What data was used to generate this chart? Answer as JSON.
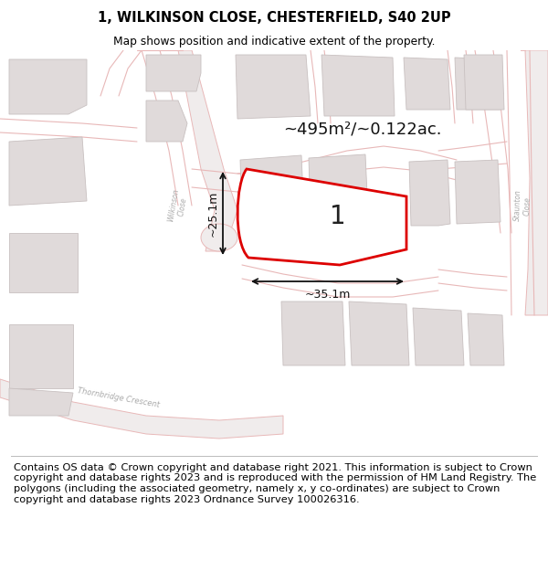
{
  "title_line1": "1, WILKINSON CLOSE, CHESTERFIELD, S40 2UP",
  "title_line2": "Map shows position and indicative extent of the property.",
  "footer_text": "Contains OS data © Crown copyright and database right 2021. This information is subject to Crown copyright and database rights 2023 and is reproduced with the permission of HM Land Registry. The polygons (including the associated geometry, namely x, y co-ordinates) are subject to Crown copyright and database rights 2023 Ordnance Survey 100026316.",
  "area_label": "~495m²/~0.122ac.",
  "plot_label": "1",
  "width_label": "~35.1m",
  "height_label": "~25.1m",
  "map_bg": "#f7f4f4",
  "road_stroke": "#e8b8b8",
  "building_fill": "#e0dada",
  "building_edge": "#c8c0c0",
  "plot_fill": "#ffffff",
  "plot_edge_color": "#dd0000",
  "dimension_color": "#111111",
  "road_label_color": "#aaaaaa",
  "title_fontsize": 10.5,
  "footer_fontsize": 8.2
}
